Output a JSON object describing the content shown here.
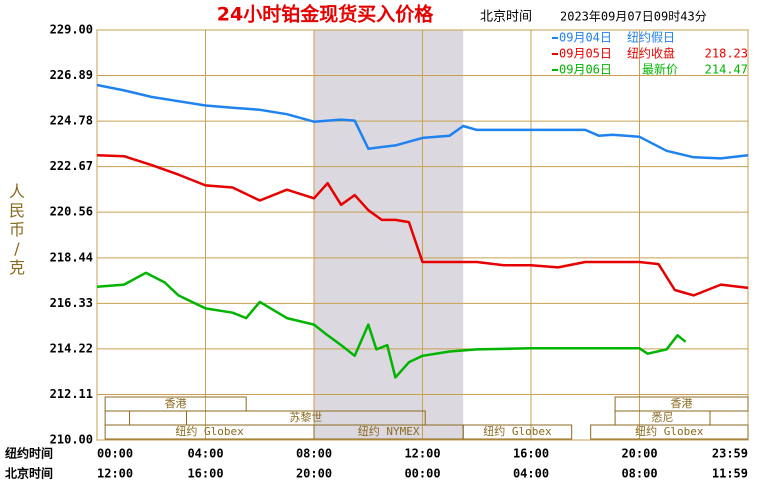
{
  "chart_data": {
    "type": "line",
    "title": "24小时铂金现货买入价格",
    "subtitle": "北京时间",
    "timestamp": "2023年09月07日09时43分",
    "y_label": "人民币/克",
    "x_label": "纽约时间",
    "x2_label": "北京时间",
    "xlim": [
      0,
      24
    ],
    "xticks": [
      {
        "value": 0,
        "label": "00:00"
      },
      {
        "value": 4,
        "label": "04:00"
      },
      {
        "value": 8,
        "label": "08:00"
      },
      {
        "value": 12,
        "label": "12:00"
      },
      {
        "value": 16,
        "label": "16:00"
      },
      {
        "value": 20,
        "label": "20:00"
      },
      {
        "value": 24,
        "label": "23:59"
      }
    ],
    "x2ticks": [
      "12:00",
      "16:00",
      "20:00",
      "00:00",
      "04:00",
      "08:00",
      "11:59"
    ],
    "ylim": [
      210,
      229
    ],
    "yticks": [
      {
        "value": 229,
        "label": "229.00"
      },
      226.89,
      224.78,
      222.67,
      220.56,
      218.44,
      216.33,
      214.22,
      212.11,
      {
        "value": 210,
        "label": "210.00"
      }
    ],
    "grid": true,
    "sessions": [
      "香港",
      "香港",
      "苏黎世",
      "悉尼",
      "纽约 Globex",
      "纽约 NYMEX",
      "纽约 Globex",
      "纽约 Globex"
    ],
    "series": [
      {
        "name": "09月04日",
        "note": "纽约假日",
        "color": "#1e82f0",
        "x": [
          0,
          1,
          2,
          3,
          4,
          5,
          6,
          7,
          8,
          9,
          9.5,
          10,
          11,
          12,
          13,
          13.5,
          14,
          15,
          16,
          17,
          18,
          18.5,
          19,
          20,
          21,
          22,
          23,
          24
        ],
        "values": [
          226.45,
          226.2,
          225.9,
          225.7,
          225.5,
          225.4,
          225.3,
          225.1,
          224.75,
          224.85,
          224.8,
          223.5,
          223.65,
          224.0,
          224.1,
          224.55,
          224.37,
          224.37,
          224.37,
          224.37,
          224.37,
          224.1,
          224.15,
          224.05,
          223.4,
          223.1,
          223.05,
          223.2
        ]
      },
      {
        "name": "09月05日",
        "note": "纽约收盘",
        "close": 218.23,
        "color": "#e60000",
        "x": [
          0,
          1,
          2,
          3,
          4,
          5,
          6,
          7,
          8,
          8.5,
          9,
          9.5,
          10,
          10.5,
          11,
          11.5,
          12,
          13,
          14,
          15,
          16,
          17,
          18,
          19,
          20,
          20.7,
          21.3,
          22,
          23,
          24
        ],
        "values": [
          223.2,
          223.15,
          222.75,
          222.3,
          221.8,
          221.7,
          221.1,
          221.6,
          221.2,
          221.9,
          220.9,
          221.35,
          220.65,
          220.2,
          220.2,
          220.1,
          218.25,
          218.25,
          218.25,
          218.1,
          218.1,
          218.0,
          218.25,
          218.25,
          218.25,
          218.15,
          216.95,
          216.7,
          217.2,
          217.05
        ]
      },
      {
        "name": "09月06日",
        "note": "最新价",
        "last": 214.47,
        "color": "#00b400",
        "x": [
          0,
          1,
          1.8,
          2.5,
          3,
          4,
          5,
          5.5,
          6,
          7,
          8,
          8.5,
          9,
          9.5,
          10,
          10.3,
          10.7,
          11,
          11.5,
          12,
          13,
          14,
          16,
          18,
          20,
          20.3,
          21,
          21.4,
          21.7
        ],
        "values": [
          217.1,
          217.2,
          217.75,
          217.3,
          216.7,
          216.1,
          215.9,
          215.65,
          216.4,
          215.65,
          215.35,
          214.85,
          214.4,
          213.9,
          215.35,
          214.2,
          214.4,
          212.9,
          213.6,
          213.9,
          214.1,
          214.2,
          214.25,
          214.25,
          214.25,
          214.0,
          214.2,
          214.85,
          214.55
        ]
      }
    ]
  }
}
